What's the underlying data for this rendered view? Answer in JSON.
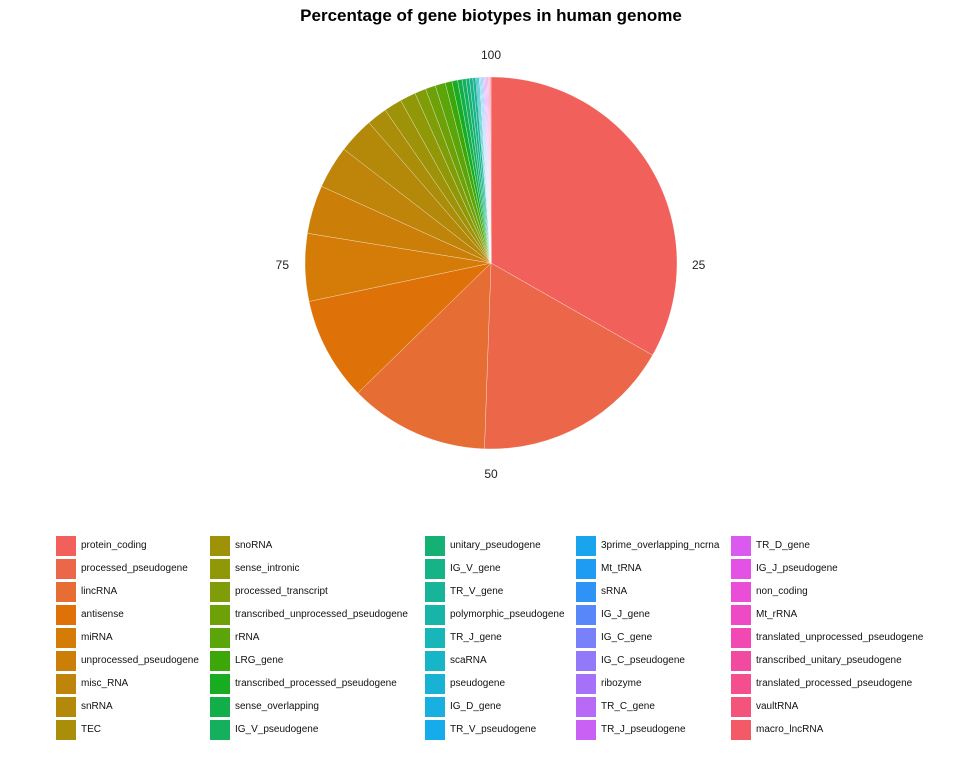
{
  "chart_data": {
    "type": "pie",
    "title": "Percentage of gene biotypes in human genome",
    "xlabel": "",
    "ylabel": "",
    "axis_ticks": [
      "25",
      "50",
      "75",
      "100"
    ],
    "legend_position": "bottom",
    "grid": false,
    "direction": "clockwise from top",
    "slices": [
      {
        "label": "protein_coding",
        "value": 34.0,
        "color": "#F2605C"
      },
      {
        "label": "processed_pseudogene",
        "value": 17.7,
        "color": "#EC6749"
      },
      {
        "label": "lincRNA",
        "value": 12.4,
        "color": "#E66D33"
      },
      {
        "label": "antisense",
        "value": 9.2,
        "color": "#DE7208"
      },
      {
        "label": "miRNA",
        "value": 6.0,
        "color": "#D47B08"
      },
      {
        "label": "unprocessed_pseudogene",
        "value": 4.3,
        "color": "#CB7F09"
      },
      {
        "label": "misc_RNA",
        "value": 3.8,
        "color": "#BF840A"
      },
      {
        "label": "snRNA",
        "value": 3.2,
        "color": "#B48909"
      },
      {
        "label": "TEC",
        "value": 1.8,
        "color": "#AA8D09"
      },
      {
        "label": "snoRNA",
        "value": 1.6,
        "color": "#9D9208"
      },
      {
        "label": "sense_intronic",
        "value": 1.4,
        "color": "#909808"
      },
      {
        "label": "processed_transcript",
        "value": 1.0,
        "color": "#7F9D08"
      },
      {
        "label": "transcribed_unprocessed_pseudogene",
        "value": 0.9,
        "color": "#6EA008"
      },
      {
        "label": "rRNA",
        "value": 0.9,
        "color": "#5BA409"
      },
      {
        "label": "LRG_gene",
        "value": 0.6,
        "color": "#3DA709"
      },
      {
        "label": "transcribed_processed_pseudogene",
        "value": 0.5,
        "color": "#17AC22"
      },
      {
        "label": "sense_overlapping",
        "value": 0.4,
        "color": "#12AE4A"
      },
      {
        "label": "IG_V_pseudogene",
        "value": 0.35,
        "color": "#14B05E"
      },
      {
        "label": "unitary_pseudogene",
        "value": 0.3,
        "color": "#15B174"
      },
      {
        "label": "IG_V_gene",
        "value": 0.3,
        "color": "#16B386"
      },
      {
        "label": "TR_V_gene",
        "value": 0.25,
        "color": "#17B499"
      },
      {
        "label": "polymorphic_pseudogene",
        "value": 0.1,
        "color": "#17B5A9"
      },
      {
        "label": "TR_J_gene",
        "value": 0.1,
        "color": "#17B6B9"
      },
      {
        "label": "scaRNA",
        "value": 0.1,
        "color": "#18B5C8"
      },
      {
        "label": "pseudogene",
        "value": 0.05,
        "color": "#18B3D4"
      },
      {
        "label": "IG_D_gene",
        "value": 0.05,
        "color": "#17B0E0"
      },
      {
        "label": "TR_V_pseudogene",
        "value": 0.05,
        "color": "#16ABEA"
      },
      {
        "label": "3prime_overlapping_ncrna",
        "value": 0.05,
        "color": "#18A5EE"
      },
      {
        "label": "Mt_tRNA",
        "value": 0.05,
        "color": "#1E9CF3"
      },
      {
        "label": "sRNA",
        "value": 0.05,
        "color": "#2E92F7"
      },
      {
        "label": "IG_J_gene",
        "value": 0.05,
        "color": "#5887F9"
      },
      {
        "label": "IG_C_gene",
        "value": 0.05,
        "color": "#7981FA"
      },
      {
        "label": "IG_C_pseudogene",
        "value": 0.05,
        "color": "#9179FA"
      },
      {
        "label": "ribozyme",
        "value": 0.05,
        "color": "#A571F9"
      },
      {
        "label": "TR_C_gene",
        "value": 0.05,
        "color": "#B86AF7"
      },
      {
        "label": "TR_J_pseudogene",
        "value": 0.05,
        "color": "#C962F4"
      },
      {
        "label": "TR_D_gene",
        "value": 0.05,
        "color": "#DA59EF"
      },
      {
        "label": "IG_J_pseudogene",
        "value": 0.05,
        "color": "#E452E5"
      },
      {
        "label": "non_coding",
        "value": 0.05,
        "color": "#EA4DD6"
      },
      {
        "label": "Mt_rRNA",
        "value": 0.05,
        "color": "#EF4AC5"
      },
      {
        "label": "translated_unprocessed_pseudogene",
        "value": 0.05,
        "color": "#F248B3"
      },
      {
        "label": "transcribed_unitary_pseudogene",
        "value": 0.05,
        "color": "#F34AA1"
      },
      {
        "label": "translated_processed_pseudogene",
        "value": 0.05,
        "color": "#F44E8F"
      },
      {
        "label": "vaultRNA",
        "value": 0.05,
        "color": "#F4537B"
      },
      {
        "label": "macro_lncRNA",
        "value": 0.05,
        "color": "#F35A66"
      }
    ]
  }
}
